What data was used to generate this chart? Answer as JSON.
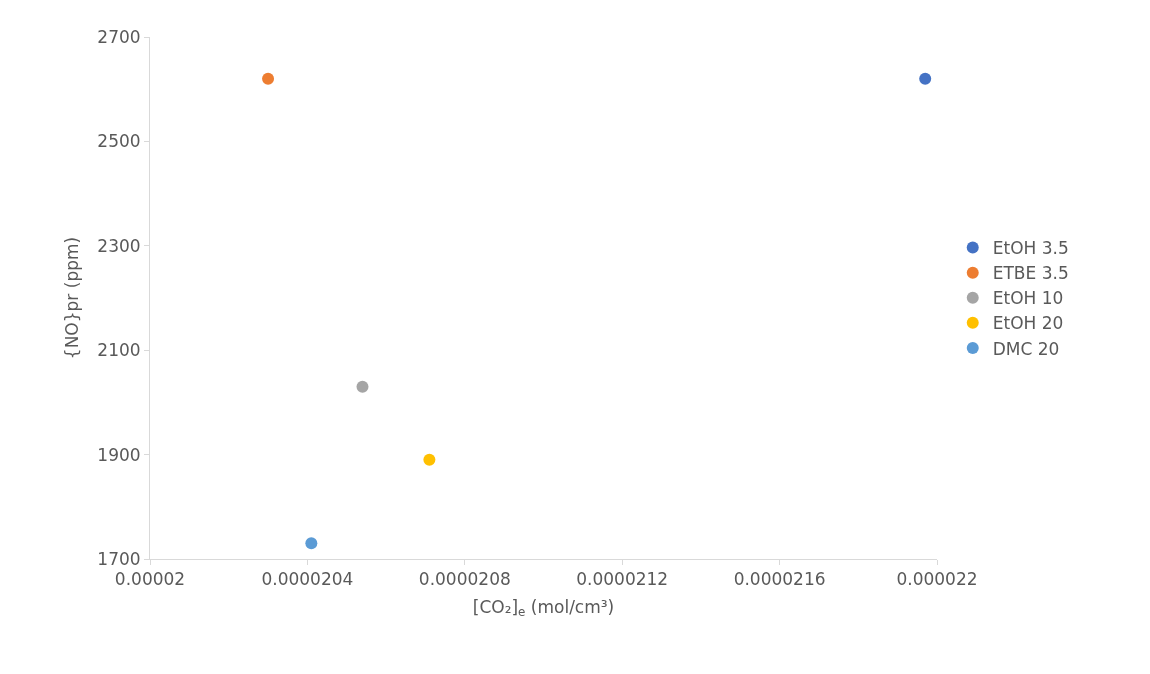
{
  "chart_data": {
    "type": "scatter",
    "xlabel": "[CO₂]$_{e}$ (mol/cm³)",
    "ylabel": "{NO}pr (ppm)",
    "series": [
      {
        "name": "EtOH 3.5",
        "color": "#4472c4",
        "x": [
          2.197e-05
        ],
        "values": [
          2620
        ]
      },
      {
        "name": "ETBE 3.5",
        "color": "#ed7d31",
        "x": [
          2.03e-05
        ],
        "values": [
          2620
        ]
      },
      {
        "name": "EtOH 10",
        "color": "#a5a5a5",
        "x": [
          2.054e-05
        ],
        "values": [
          2030
        ]
      },
      {
        "name": "EtOH 20",
        "color": "#ffc000",
        "x": [
          2.071e-05
        ],
        "values": [
          1890
        ]
      },
      {
        "name": "DMC 20",
        "color": "#5b9bd5",
        "x": [
          2.041e-05
        ],
        "values": [
          1730
        ]
      }
    ],
    "xlim": [
      2e-05,
      2.2e-05
    ],
    "xticks": [
      {
        "value": 2e-05,
        "label": "0.00002"
      },
      {
        "value": 2.04e-05,
        "label": "0.0000204"
      },
      {
        "value": 2.08e-05,
        "label": "0.0000208"
      },
      {
        "value": 2.12e-05,
        "label": "0.0000212"
      },
      {
        "value": 2.16e-05,
        "label": "0.0000216"
      },
      {
        "value": 2.2e-05,
        "label": "0.000022"
      }
    ],
    "ylim": [
      1700,
      2700
    ],
    "yticks": [
      1700,
      1900,
      2100,
      2300,
      2500,
      2700
    ],
    "grid": false,
    "legend": "right",
    "marker": "circle"
  }
}
